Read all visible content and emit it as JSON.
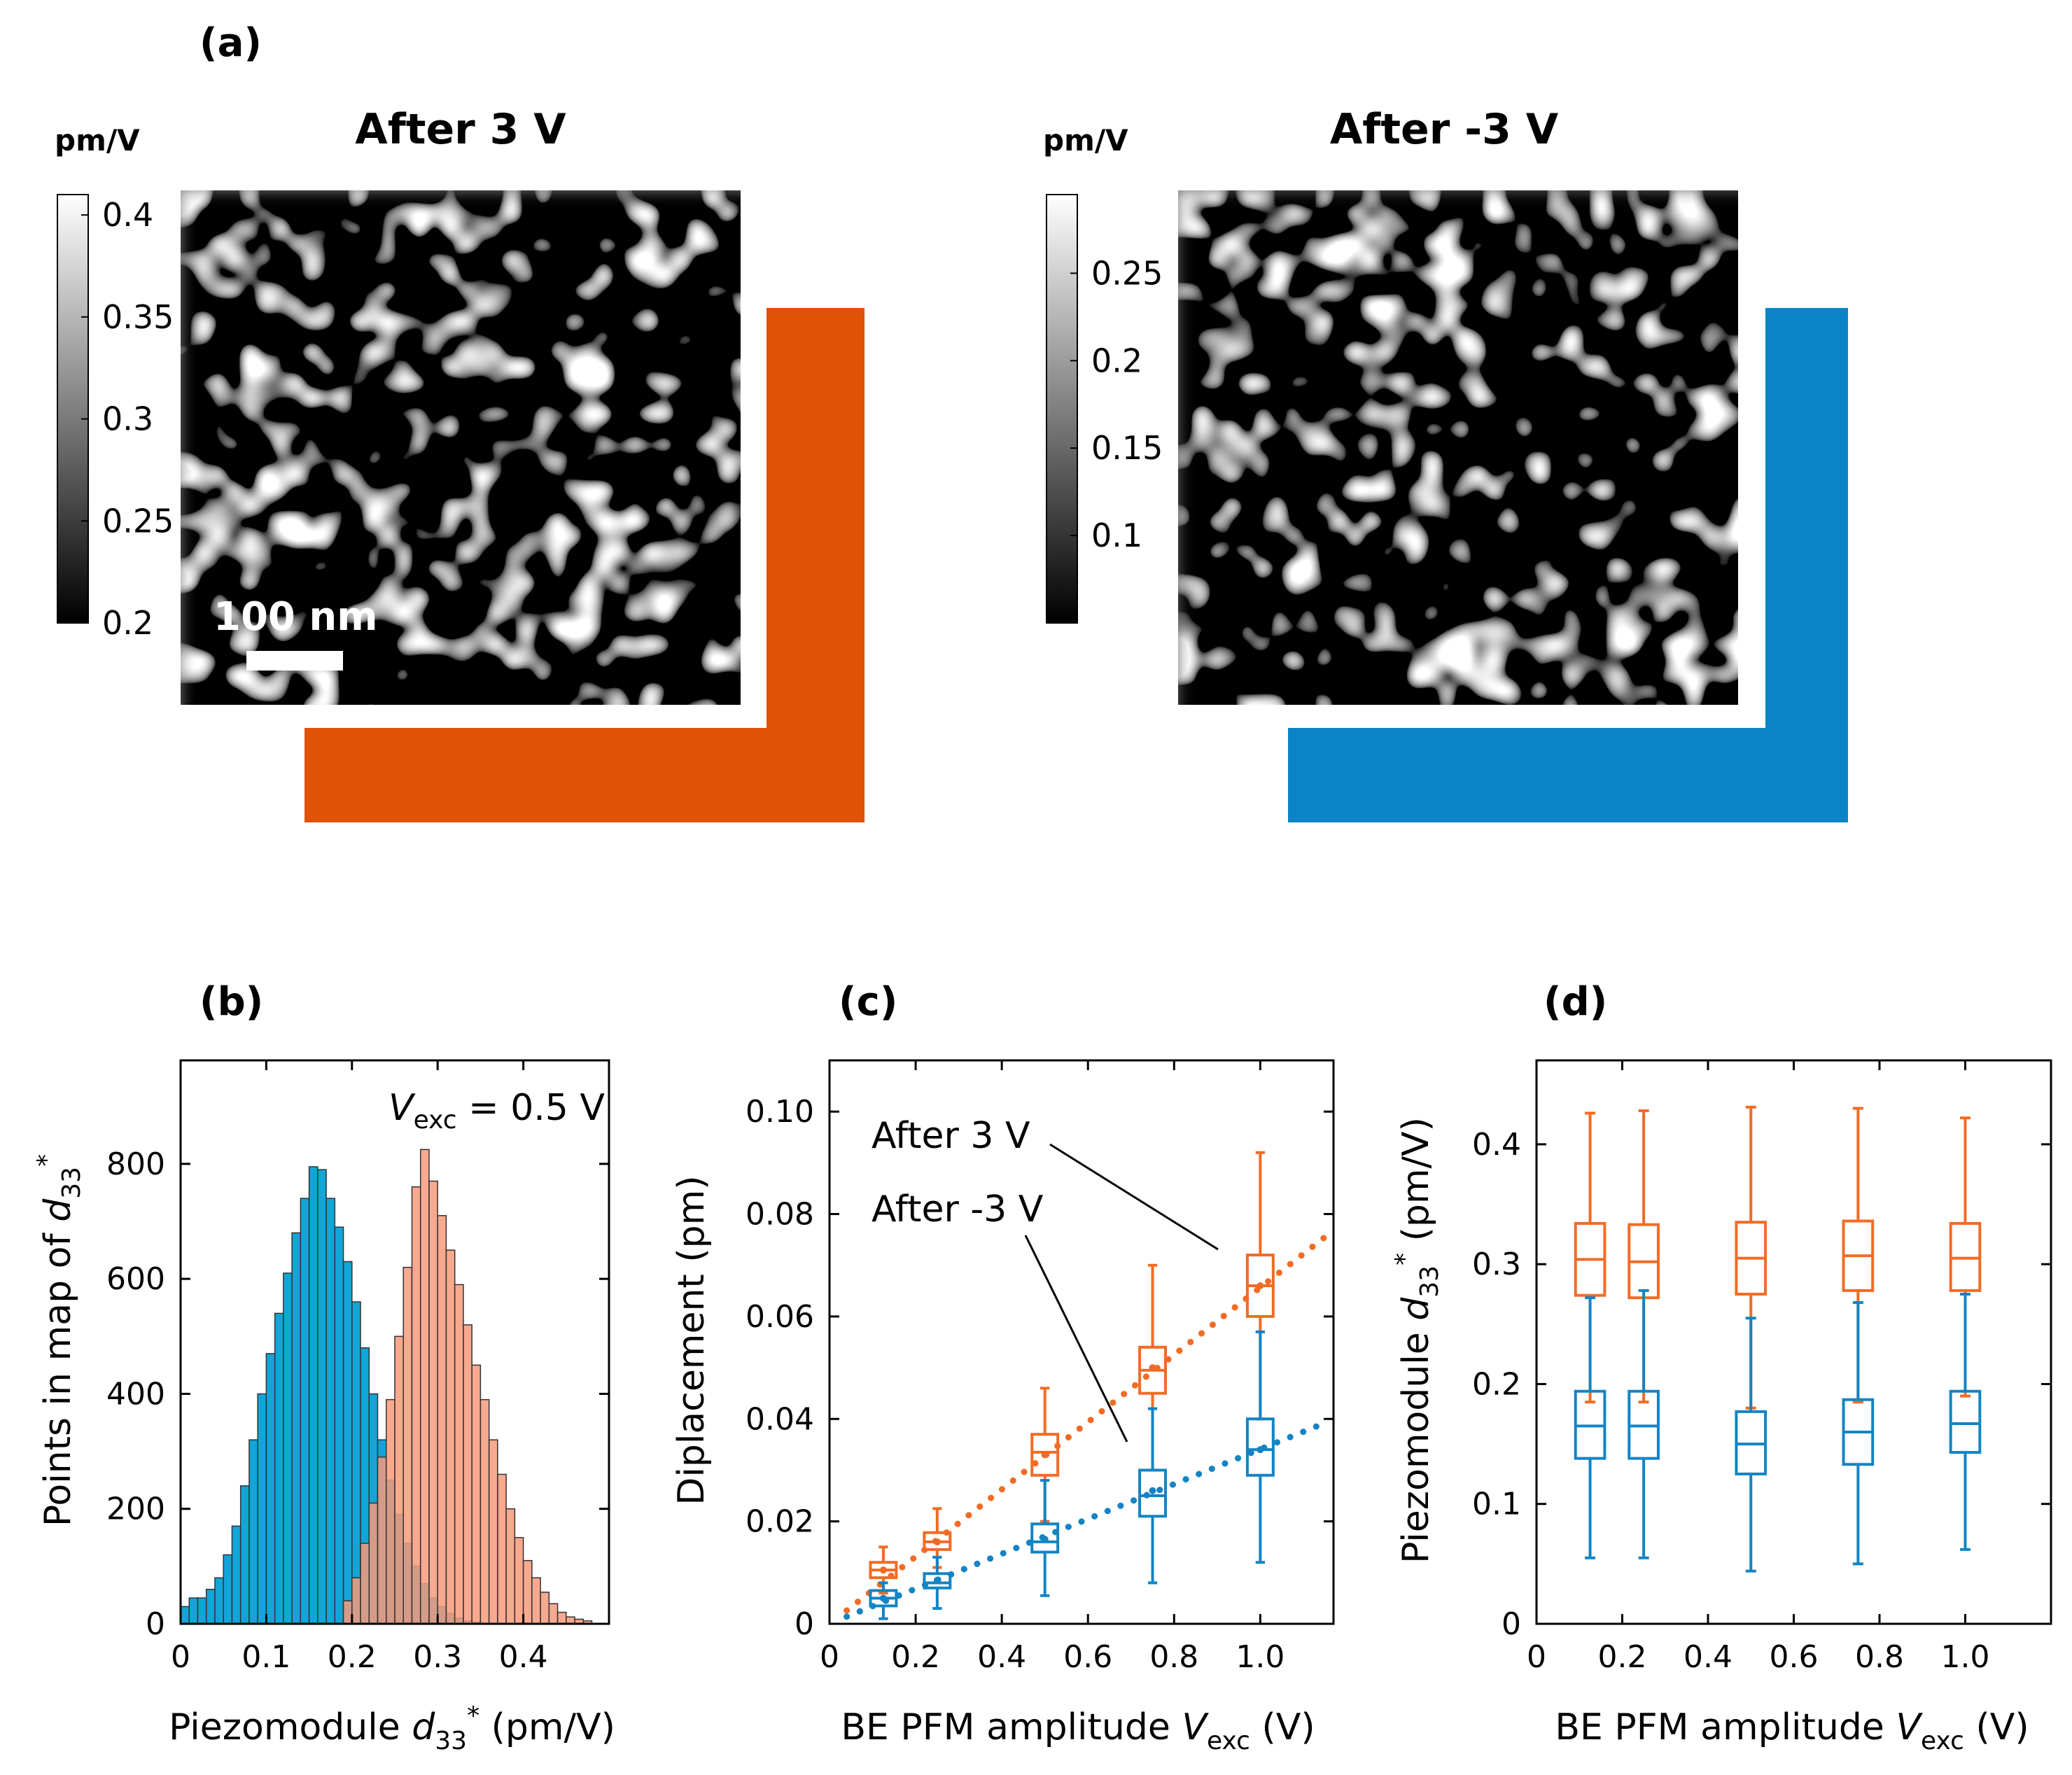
{
  "panel_a": {
    "label": "(a)",
    "left_map": {
      "title": "After 3 V",
      "unit": "pm/V",
      "colorbar_ticks": [
        "0.4",
        "0.35",
        "0.3",
        "0.25",
        "0.2"
      ],
      "colorbar_range": [
        0.2,
        0.41
      ],
      "scalebar_label": "100 nm",
      "frame_color": "#e05206"
    },
    "right_map": {
      "title": "After -3 V",
      "unit": "pm/V",
      "colorbar_ticks": [
        "0.25",
        "0.2",
        "0.15",
        "0.1"
      ],
      "colorbar_range": [
        0.05,
        0.295
      ],
      "frame_color": "#0a84c6"
    }
  },
  "colors": {
    "orange": "#f26b25",
    "blue": "#1384c4",
    "hist_orange": "#f79a7a",
    "hist_blue": "#11a5d8"
  },
  "chart_data": [
    {
      "panel": "(b)",
      "type": "bar",
      "xlabel_parts": {
        "pre": "Piezomodule ",
        "var": "d",
        "sub": "33",
        "sup": "*",
        "post": " (pm/V)"
      },
      "ylabel_parts": {
        "pre": "Points in map of ",
        "var": "d",
        "sub": "33",
        "sup": "*"
      },
      "annotation_parts": {
        "var": "V",
        "sub": "exc",
        "post": " = 0.5 V"
      },
      "xlim": [
        0,
        0.5
      ],
      "ylim": [
        0,
        980
      ],
      "xticks": [
        0,
        0.1,
        0.2,
        0.3,
        0.4
      ],
      "xtick_labels": [
        "0",
        "0.1",
        "0.2",
        "0.3",
        "0.4"
      ],
      "yticks": [
        0,
        200,
        400,
        600,
        800
      ],
      "ytick_labels": [
        "0",
        "200",
        "400",
        "600",
        "800"
      ],
      "bin_width": 0.01,
      "series": [
        {
          "color": "#11a5d8",
          "bin_starts": [
            0.0,
            0.01,
            0.02,
            0.03,
            0.04,
            0.05,
            0.06,
            0.07,
            0.08,
            0.09,
            0.1,
            0.11,
            0.12,
            0.13,
            0.14,
            0.15,
            0.16,
            0.17,
            0.18,
            0.19,
            0.2,
            0.21,
            0.22,
            0.23,
            0.24,
            0.25,
            0.26,
            0.27,
            0.28,
            0.29,
            0.3,
            0.31,
            0.32,
            0.33,
            0.34
          ],
          "counts": [
            30,
            45,
            45,
            60,
            80,
            120,
            170,
            240,
            320,
            400,
            470,
            540,
            610,
            680,
            740,
            795,
            790,
            740,
            690,
            630,
            560,
            480,
            400,
            320,
            250,
            190,
            140,
            100,
            70,
            45,
            30,
            18,
            10,
            5,
            3
          ]
        },
        {
          "color": "#f79a7a",
          "bin_starts": [
            0.19,
            0.2,
            0.21,
            0.22,
            0.23,
            0.24,
            0.25,
            0.26,
            0.27,
            0.28,
            0.29,
            0.3,
            0.31,
            0.32,
            0.33,
            0.34,
            0.35,
            0.36,
            0.37,
            0.38,
            0.39,
            0.4,
            0.41,
            0.42,
            0.43,
            0.44,
            0.45,
            0.46,
            0.47
          ],
          "counts": [
            40,
            80,
            140,
            210,
            290,
            390,
            500,
            620,
            760,
            825,
            770,
            710,
            650,
            590,
            520,
            450,
            390,
            320,
            260,
            200,
            150,
            110,
            80,
            55,
            35,
            20,
            12,
            8,
            5
          ]
        }
      ]
    },
    {
      "panel": "(c)",
      "type": "box",
      "xlabel_parts": {
        "pre": "BE PFM amplitude ",
        "var": "V",
        "sub": "exc",
        "post": " (V)"
      },
      "ylabel": "Diplacement (pm)",
      "xlim": [
        0,
        1.17
      ],
      "ylim": [
        0,
        0.11
      ],
      "xticks": [
        0,
        0.2,
        0.4,
        0.6,
        0.8,
        1.0
      ],
      "xtick_labels": [
        "0",
        "0.2",
        "0.4",
        "0.6",
        "0.8",
        "1.0"
      ],
      "yticks": [
        0,
        0.02,
        0.04,
        0.06,
        0.08,
        0.1
      ],
      "ytick_labels": [
        "0",
        "0.02",
        "0.04",
        "0.06",
        "0.08",
        "0.10"
      ],
      "box_half_width": 0.03,
      "annotations": [
        "After 3 V",
        "After -3 V"
      ],
      "series": [
        {
          "color": "#f26b25",
          "x": [
            0.125,
            0.25,
            0.5,
            0.75,
            1.0
          ],
          "whisker_low": [
            0.006,
            0.011,
            0.02,
            0.03,
            0.04
          ],
          "q1": [
            0.009,
            0.0145,
            0.029,
            0.045,
            0.06
          ],
          "median": [
            0.0105,
            0.016,
            0.0335,
            0.0495,
            0.066
          ],
          "q3": [
            0.012,
            0.0178,
            0.037,
            0.054,
            0.072
          ],
          "whisker_high": [
            0.015,
            0.0225,
            0.046,
            0.07,
            0.092
          ],
          "mean": [
            0.0105,
            0.016,
            0.033,
            0.05,
            0.066
          ],
          "fit_line": {
            "x": [
              0.04,
              1.15
            ],
            "y": [
              0.0026,
              0.0755
            ]
          }
        },
        {
          "color": "#1384c4",
          "x": [
            0.125,
            0.25,
            0.5,
            0.75,
            1.0
          ],
          "whisker_low": [
            0.001,
            0.003,
            0.0055,
            0.008,
            0.012
          ],
          "q1": [
            0.0035,
            0.007,
            0.014,
            0.021,
            0.029
          ],
          "median": [
            0.005,
            0.008,
            0.016,
            0.025,
            0.034
          ],
          "q3": [
            0.0065,
            0.0098,
            0.0195,
            0.03,
            0.04
          ],
          "whisker_high": [
            0.008,
            0.013,
            0.028,
            0.042,
            0.057
          ],
          "mean": [
            0.005,
            0.0085,
            0.0165,
            0.026,
            0.034
          ],
          "fit_line": {
            "x": [
              0.04,
              1.15
            ],
            "y": [
              0.0014,
              0.0392
            ]
          }
        }
      ]
    },
    {
      "panel": "(d)",
      "type": "box",
      "xlabel_parts": {
        "pre": "BE PFM amplitude ",
        "var": "V",
        "sub": "exc",
        "post": " (V)"
      },
      "ylabel_parts": {
        "pre": "Piezomodule ",
        "var": "d",
        "sub": "33",
        "sup": "*",
        "post": " (pm/V)"
      },
      "xlim": [
        0,
        1.2
      ],
      "ylim": [
        0,
        0.47
      ],
      "xticks": [
        0,
        0.2,
        0.4,
        0.6,
        0.8,
        1.0
      ],
      "xtick_labels": [
        "0",
        "0.2",
        "0.4",
        "0.6",
        "0.8",
        "1.0"
      ],
      "yticks": [
        0,
        0.1,
        0.2,
        0.3,
        0.4
      ],
      "ytick_labels": [
        "0",
        "0.1",
        "0.2",
        "0.3",
        "0.4"
      ],
      "box_half_width": 0.034,
      "series": [
        {
          "color": "#f26b25",
          "x": [
            0.125,
            0.25,
            0.5,
            0.75,
            1.0
          ],
          "whisker_low": [
            0.185,
            0.185,
            0.18,
            0.185,
            0.19
          ],
          "q1": [
            0.274,
            0.272,
            0.275,
            0.278,
            0.278
          ],
          "median": [
            0.304,
            0.302,
            0.305,
            0.307,
            0.305
          ],
          "q3": [
            0.334,
            0.333,
            0.335,
            0.336,
            0.334
          ],
          "whisker_high": [
            0.426,
            0.428,
            0.431,
            0.43,
            0.422
          ]
        },
        {
          "color": "#1384c4",
          "x": [
            0.125,
            0.25,
            0.5,
            0.75,
            1.0
          ],
          "whisker_low": [
            0.055,
            0.055,
            0.044,
            0.05,
            0.062
          ],
          "q1": [
            0.138,
            0.138,
            0.125,
            0.133,
            0.143
          ],
          "median": [
            0.165,
            0.165,
            0.15,
            0.16,
            0.167
          ],
          "q3": [
            0.194,
            0.194,
            0.177,
            0.187,
            0.194
          ],
          "whisker_high": [
            0.272,
            0.278,
            0.255,
            0.268,
            0.275
          ]
        }
      ]
    }
  ]
}
